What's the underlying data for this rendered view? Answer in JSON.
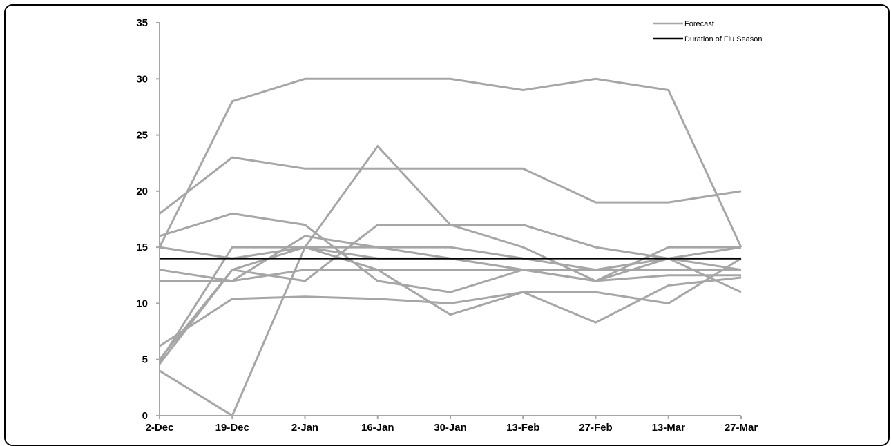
{
  "chart_data": {
    "type": "line",
    "x": [
      "2-Dec",
      "19-Dec",
      "2-Jan",
      "16-Jan",
      "30-Jan",
      "13-Feb",
      "27-Feb",
      "13-Mar",
      "27-Mar"
    ],
    "ylim": [
      0,
      35
    ],
    "yticks": [
      0,
      5,
      10,
      15,
      20,
      25,
      30,
      35
    ],
    "grid": false,
    "legend": {
      "placement": "top-right",
      "entries": [
        {
          "label": "Forecast",
          "color": "#a6a6a6"
        },
        {
          "label": "Duration of Flu Season",
          "color": "#000000"
        }
      ]
    },
    "forecast_color": "#a6a6a6",
    "duration_color": "#000000",
    "duration_value": 14,
    "series": [
      {
        "values": [
          15,
          28,
          30,
          30,
          30,
          29,
          30,
          29,
          15
        ]
      },
      {
        "values": [
          18,
          23,
          22,
          22,
          22,
          22,
          19,
          19,
          20
        ]
      },
      {
        "values": [
          16,
          18,
          17,
          12,
          11,
          13,
          13,
          14,
          15
        ]
      },
      {
        "values": [
          15,
          14,
          15,
          15,
          15,
          14,
          13,
          14,
          11
        ]
      },
      {
        "values": [
          13,
          12,
          16,
          15,
          14,
          13,
          12,
          15,
          15
        ]
      },
      {
        "values": [
          12,
          12,
          13,
          13,
          13,
          13,
          13,
          13,
          13
        ]
      },
      {
        "values": [
          4,
          0,
          15,
          24,
          17,
          15,
          12,
          14,
          14
        ]
      },
      {
        "values": [
          5,
          13,
          12,
          17,
          17,
          17,
          15,
          14,
          13
        ]
      },
      {
        "values": [
          6.2,
          10.4,
          10.6,
          10.4,
          10,
          11,
          11,
          10,
          14
        ]
      },
      {
        "values": [
          4.8,
          15,
          15,
          13,
          9,
          11,
          8.3,
          11.6,
          12.3
        ]
      },
      {
        "values": [
          4.6,
          13,
          15,
          14,
          14,
          13,
          12,
          12.5,
          12.5
        ]
      }
    ]
  }
}
